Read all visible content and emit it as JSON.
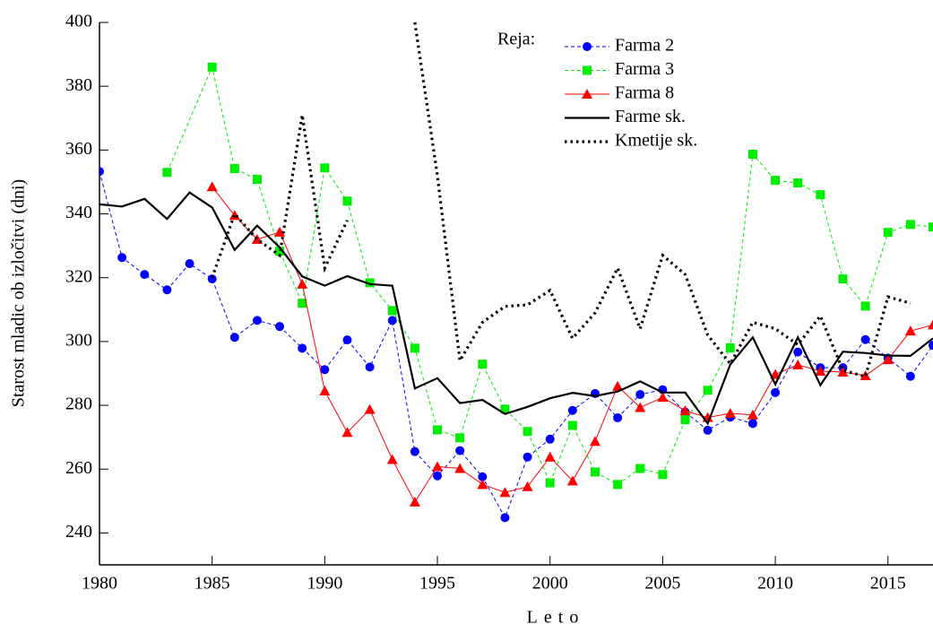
{
  "chart_data": {
    "type": "line",
    "xlabel": "Leto",
    "ylabel": "Starost mladic ob izločitvi (dni)",
    "legend_title": "Reja:",
    "legend": "upper-center",
    "xlim": [
      1980,
      2017
    ],
    "xticks": [
      1980,
      1985,
      1990,
      1995,
      2000,
      2005,
      2010,
      2015
    ],
    "ylim": [
      230,
      400
    ],
    "yticks": [
      240,
      260,
      280,
      300,
      320,
      340,
      360,
      380,
      400
    ],
    "series": [
      {
        "name": "Farma 2",
        "color": "#0000ff",
        "marker": "circle",
        "line": "dashed",
        "x": [
          1980,
          1981,
          1982,
          1983,
          1984,
          1985,
          1986,
          1987,
          1988,
          1989,
          1990,
          1991,
          1992,
          1993,
          1994,
          1995,
          1996,
          1997,
          1998,
          1999,
          2000,
          2001,
          2002,
          2003,
          2004,
          2005,
          2006,
          2007,
          2008,
          2009,
          2010,
          2011,
          2012,
          2013,
          2014,
          2015,
          2016,
          2017
        ],
        "values": [
          353.3,
          326.3,
          321,
          316.2,
          324.4,
          319.6,
          301.3,
          306.6,
          304.7,
          297.9,
          291.2,
          300.5,
          292,
          306.6,
          265.5,
          257.9,
          265.8,
          257.6,
          244.8,
          263.8,
          269.4,
          278.4,
          283.7,
          276.1,
          283.4,
          284.9,
          277.9,
          272.2,
          276.3,
          274.3,
          284,
          296.7,
          291.8,
          291.8,
          300.6,
          294.8,
          289.1,
          298.8
        ]
      },
      {
        "name": "Farma 3",
        "color": "#00ee00",
        "marker": "square",
        "line": "dashed",
        "x": [
          1983,
          1985,
          1986,
          1987,
          1988,
          1989,
          1990,
          1991,
          1992,
          1993,
          1994,
          1995,
          1996,
          1997,
          1998,
          1999,
          2000,
          2001,
          2002,
          2003,
          2004,
          2005,
          2006,
          2007,
          2008,
          2009,
          2010,
          2011,
          2012,
          2013,
          2014,
          2015,
          2016,
          2017
        ],
        "values": [
          353,
          386,
          354.2,
          350.8,
          328.3,
          312,
          354.4,
          344,
          318.4,
          309.7,
          297.9,
          272.3,
          269.8,
          292.9,
          278.8,
          271.8,
          255.7,
          273.7,
          259.1,
          255.2,
          260.2,
          258.3,
          275.5,
          284.7,
          298,
          358.7,
          350.5,
          349.7,
          346,
          319.6,
          311.1,
          334.2,
          336.7,
          335.9
        ]
      },
      {
        "name": "Farma 8",
        "color": "#ff0000",
        "marker": "triangle",
        "line": "solid",
        "x": [
          1985,
          1986,
          1987,
          1988,
          1989,
          1990,
          1991,
          1992,
          1993,
          1994,
          1995,
          1996,
          1997,
          1998,
          1999,
          2000,
          2001,
          2002,
          2003,
          2004,
          2005,
          2006,
          2007,
          2008,
          2009,
          2010,
          2011,
          2012,
          2013,
          2014,
          2015,
          2016,
          2017
        ],
        "values": [
          348.5,
          339.5,
          332,
          334.3,
          318,
          284.5,
          271.5,
          278.7,
          263,
          249.7,
          260.8,
          260.2,
          255.2,
          252.7,
          254.5,
          263.8,
          256.3,
          268.7,
          286,
          279.3,
          282.5,
          278.3,
          276.2,
          277.5,
          277,
          289.7,
          292.7,
          290.7,
          290.4,
          289.3,
          294.3,
          303.3,
          305.2
        ]
      },
      {
        "name": "Farme sk.",
        "color": "#000000",
        "marker": "none",
        "line": "thick",
        "x": [
          1980,
          1981,
          1982,
          1983,
          1984,
          1985,
          1986,
          1987,
          1988,
          1989,
          1990,
          1991,
          1992,
          1993,
          1994,
          1995,
          1996,
          1997,
          1998,
          1999,
          2000,
          2001,
          2002,
          2003,
          2004,
          2005,
          2006,
          2007,
          2008,
          2009,
          2010,
          2011,
          2012,
          2013,
          2014,
          2015,
          2016,
          2017
        ],
        "values": [
          343,
          342.3,
          344.7,
          338.4,
          346.7,
          342,
          328.7,
          336.3,
          329.5,
          320.4,
          317.5,
          320.5,
          318,
          317.5,
          285.3,
          288.5,
          280.7,
          281.7,
          277.3,
          279.5,
          282.2,
          283.9,
          282.9,
          284.3,
          287.5,
          284,
          284,
          274.3,
          292.8,
          301.3,
          286.6,
          301.3,
          286.3,
          296.8,
          296.4,
          295.6,
          295.5,
          301
        ]
      },
      {
        "name": "Kmetije sk.",
        "color": "#000000",
        "marker": "none",
        "line": "dotted",
        "x": [
          1985,
          1986,
          1987,
          1988,
          1989,
          1990,
          1991,
          1992,
          1993,
          1994,
          1995,
          1996,
          1997,
          1998,
          1999,
          2000,
          2001,
          2002,
          2003,
          2004,
          2005,
          2006,
          2007,
          2008,
          2009,
          2010,
          2011,
          2012,
          2013,
          2014,
          2015,
          2016
        ],
        "values": [
          320,
          340,
          332,
          327,
          371,
          323,
          338,
          null,
          null,
          400,
          352,
          294,
          306,
          311,
          311.5,
          316,
          301,
          309,
          323,
          304,
          327,
          321,
          302,
          293,
          306,
          304,
          299,
          308,
          291,
          289,
          314,
          312
        ]
      }
    ]
  }
}
